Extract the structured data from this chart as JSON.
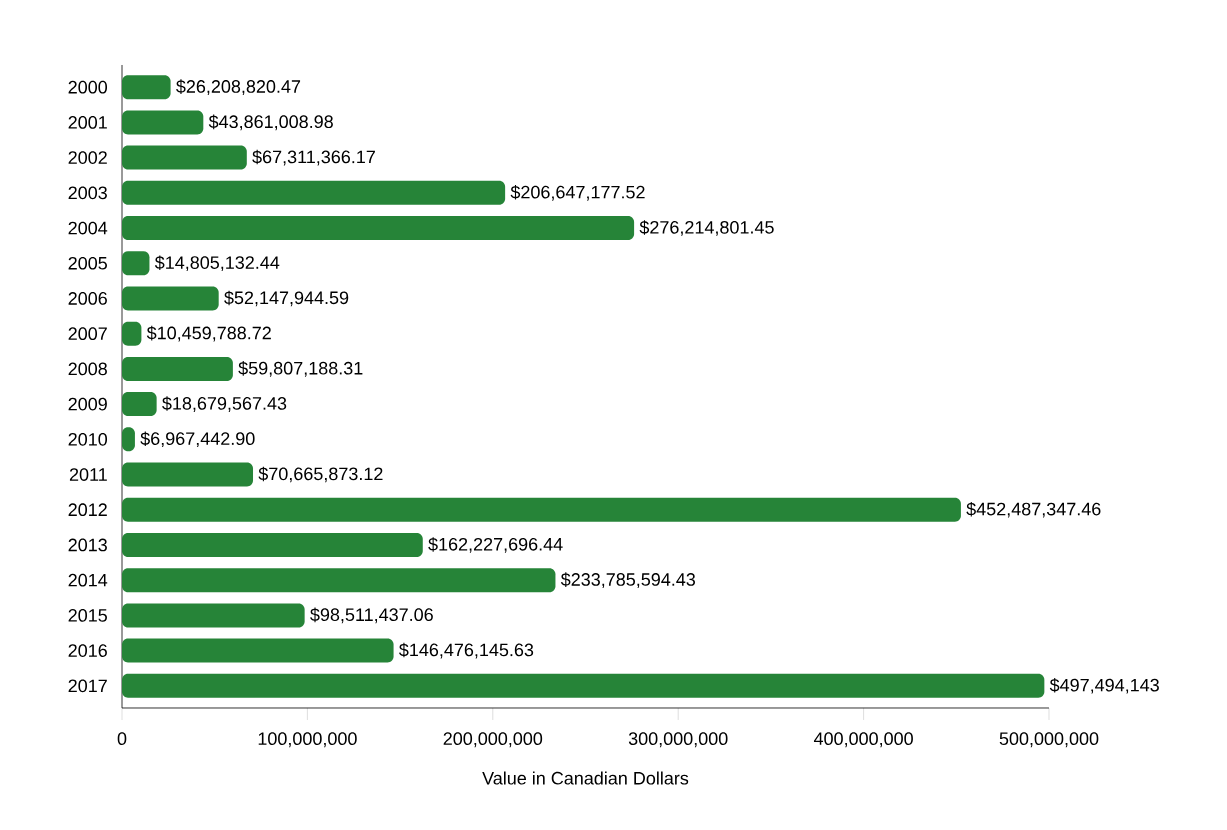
{
  "chart_data": {
    "type": "bar",
    "orientation": "horizontal",
    "xlabel": "Value in Canadian Dollars",
    "color": "#268438",
    "categories": [
      "2000",
      "2001",
      "2002",
      "2003",
      "2004",
      "2005",
      "2006",
      "2007",
      "2008",
      "2009",
      "2010",
      "2011",
      "2012",
      "2013",
      "2014",
      "2015",
      "2016",
      "2017"
    ],
    "values": [
      26208820.47,
      43861008.98,
      67311366.17,
      206647177.52,
      276214801.45,
      14805132.44,
      52147944.59,
      10459788.72,
      59807188.31,
      18679567.43,
      6967442.9,
      70665873.12,
      452487347.46,
      162227696.44,
      233785594.43,
      98511437.06,
      146476145.63,
      497494143
    ],
    "value_labels": [
      "$26,208,820.47",
      "$43,861,008.98",
      "$67,311,366.17",
      "$206,647,177.52",
      "$276,214,801.45",
      "$14,805,132.44",
      "$52,147,944.59",
      "$10,459,788.72",
      "$59,807,188.31",
      "$18,679,567.43",
      "$6,967,442.90",
      "$70,665,873.12",
      "$452,487,347.46",
      "$162,227,696.44",
      "$233,785,594.43",
      "$98,511,437.06",
      "$146,476,145.63",
      "$497,494,143"
    ],
    "xlim": [
      0,
      500000000
    ],
    "xticks": [
      0,
      {
        "value": 100000000,
        "label": "100,000,000"
      },
      {
        "value": 200000000,
        "label": "200,000,000"
      },
      {
        "value": 300000000,
        "label": "300,000,000"
      },
      {
        "value": 400000000,
        "label": "400,000,000"
      },
      {
        "value": 500000000,
        "label": "500,000,000"
      }
    ]
  }
}
